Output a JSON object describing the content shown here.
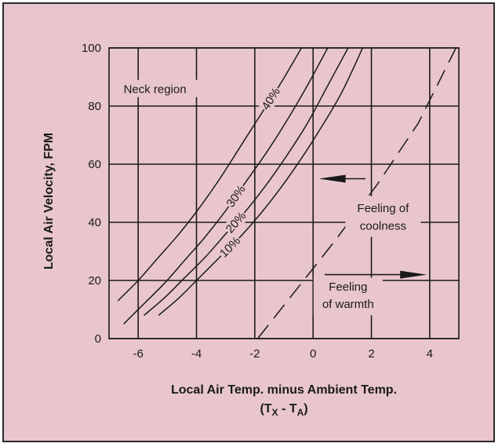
{
  "colors": {
    "background": "#e9c6cd",
    "ink": "#1a1a1a"
  },
  "chart_data": {
    "type": "line",
    "xlabel": "Local Air Temp. minus Ambient Temp.",
    "xlabel_formula": {
      "open": "(T",
      "sub1": "X",
      "minus": " - T",
      "sub2": "A",
      "close": ")"
    },
    "ylabel": "Local Air Velocity, FPM",
    "xlim": [
      -7,
      5
    ],
    "ylim": [
      0,
      100
    ],
    "xticks": [
      -6,
      -4,
      -2,
      0,
      2,
      4
    ],
    "yticks": [
      0,
      20,
      40,
      60,
      80,
      100
    ],
    "grid": true,
    "region_label": "Neck region",
    "annotations": {
      "coolness": [
        "Feeling of",
        "coolness"
      ],
      "warmth": [
        "Feeling",
        "of warmth"
      ]
    },
    "series": [
      {
        "name": "10%",
        "style": "solid",
        "x": [
          -5.3,
          -4.6,
          -3.9,
          -3.2,
          -2.5,
          -1.8,
          -1.1,
          -0.4,
          0.3,
          1.0,
          1.7
        ],
        "y": [
          8,
          14,
          21,
          28,
          35,
          43,
          52,
          62,
          73,
          85,
          100
        ]
      },
      {
        "name": "20%",
        "style": "solid",
        "x": [
          -5.8,
          -5.1,
          -4.4,
          -3.7,
          -3.0,
          -2.3,
          -1.6,
          -0.9,
          -0.2,
          0.5,
          1.2
        ],
        "y": [
          8,
          14,
          21,
          28,
          36,
          44,
          53,
          63,
          74,
          87,
          100
        ]
      },
      {
        "name": "30%",
        "style": "solid",
        "x": [
          -6.5,
          -5.8,
          -5.1,
          -4.4,
          -3.7,
          -3.0,
          -2.3,
          -1.6,
          -0.9,
          -0.2,
          0.5
        ],
        "y": [
          5,
          12,
          19,
          27,
          35,
          44,
          54,
          64,
          75,
          87,
          100
        ]
      },
      {
        "name": "40%",
        "style": "solid",
        "x": [
          -6.7,
          -6.0,
          -5.3,
          -4.6,
          -3.9,
          -3.2,
          -2.5,
          -1.8,
          -1.1,
          -0.4
        ],
        "y": [
          13,
          20,
          28,
          36,
          45,
          55,
          66,
          77,
          88,
          100
        ]
      },
      {
        "name": "",
        "style": "dashed",
        "x": [
          -1.9,
          0.7,
          2.2,
          3.6,
          4.9
        ],
        "y": [
          0,
          33,
          53,
          74,
          100
        ]
      }
    ],
    "arrows": [
      {
        "from": [
          1.8,
          55
        ],
        "to": [
          0.2,
          55
        ]
      },
      {
        "from": [
          0.4,
          22
        ],
        "to": [
          3.9,
          22
        ]
      }
    ]
  }
}
